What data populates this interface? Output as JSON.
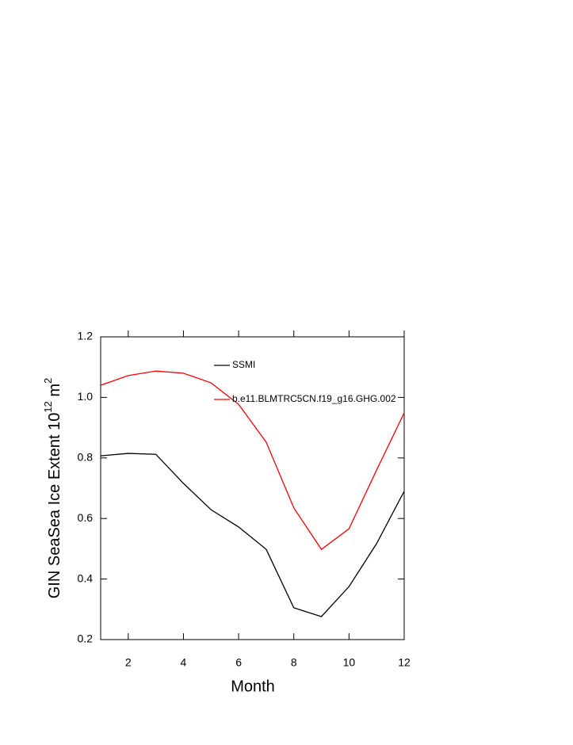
{
  "chart_data": {
    "type": "line",
    "ylabel": {
      "text": "GIN SeaSea Ice Extent 10",
      "exp": "12",
      "unit": " m",
      "unit_exp": "2"
    },
    "xlabel": "Month",
    "x": [
      1,
      2,
      3,
      4,
      5,
      6,
      7,
      8,
      9,
      10,
      11,
      12
    ],
    "series": [
      {
        "name": "SSMI",
        "color": "#000000",
        "values": [
          0.807,
          0.815,
          0.812,
          0.716,
          0.629,
          0.572,
          0.498,
          0.305,
          0.276,
          0.375,
          0.517,
          0.69
        ]
      },
      {
        "name": "b.e11.BLMTRC5CN.f19_g16.GHG.002",
        "color": "#ff0000",
        "values": [
          1.04,
          1.072,
          1.087,
          1.08,
          1.048,
          0.977,
          0.852,
          0.635,
          0.498,
          0.566,
          0.76,
          0.949
        ]
      }
    ],
    "xlim": [
      1,
      12
    ],
    "xticks": [
      2,
      4,
      6,
      8,
      10,
      12
    ],
    "ylim": [
      0.2,
      1.2
    ],
    "yticks": [
      0.2,
      0.4,
      0.6,
      0.8,
      {
        "value": 1,
        "label": "1.0"
      },
      1.2
    ]
  }
}
